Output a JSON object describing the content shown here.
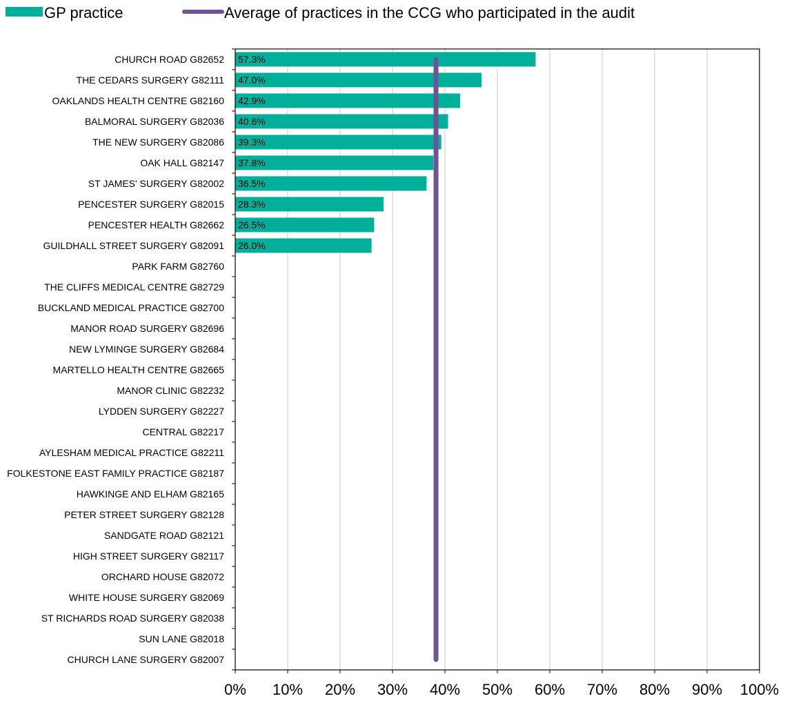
{
  "chart_data": {
    "type": "bar",
    "orientation": "horizontal",
    "title": "",
    "xlabel": "",
    "ylabel": "",
    "xlim": [
      0,
      100
    ],
    "x_ticks": [
      "0%",
      "10%",
      "20%",
      "30%",
      "40%",
      "50%",
      "60%",
      "70%",
      "80%",
      "90%",
      "100%"
    ],
    "grid": "vertical",
    "legend_position": "top",
    "legend": [
      {
        "label": "GP practice",
        "color": "#00b09b",
        "kind": "bar"
      },
      {
        "label": "Average of practices in the CCG who participated in the audit",
        "color": "#6e5495",
        "kind": "line"
      }
    ],
    "average_value": 38.3,
    "categories": [
      "CHURCH ROAD G82652",
      "THE CEDARS SURGERY G82111",
      "OAKLANDS HEALTH CENTRE G82160",
      "BALMORAL SURGERY G82036",
      "THE NEW SURGERY G82086",
      "OAK HALL G82147",
      "ST JAMES' SURGERY G82002",
      "PENCESTER SURGERY G82015",
      "PENCESTER HEALTH G82662",
      "GUILDHALL STREET SURGERY G82091",
      "PARK FARM G82760",
      "THE CLIFFS MEDICAL CENTRE G82729",
      "BUCKLAND MEDICAL PRACTICE G82700",
      "MANOR ROAD SURGERY G82696",
      "NEW LYMINGE SURGERY G82684",
      "MARTELLO HEALTH CENTRE G82665",
      "MANOR CLINIC G82232",
      "LYDDEN SURGERY G82227",
      "CENTRAL G82217",
      "AYLESHAM MEDICAL PRACTICE G82211",
      "FOLKESTONE EAST FAMILY PRACTICE G82187",
      "HAWKINGE AND ELHAM G82165",
      "PETER STREET SURGERY G82128",
      "SANDGATE ROAD G82121",
      "HIGH STREET SURGERY G82117",
      "ORCHARD HOUSE G82072",
      "WHITE HOUSE SURGERY G82069",
      "ST RICHARDS ROAD SURGERY G82038",
      "SUN LANE G82018",
      "CHURCH LANE SURGERY G82007"
    ],
    "values": [
      57.3,
      47.0,
      42.9,
      40.6,
      39.3,
      37.8,
      36.5,
      28.3,
      26.5,
      26.0,
      null,
      null,
      null,
      null,
      null,
      null,
      null,
      null,
      null,
      null,
      null,
      null,
      null,
      null,
      null,
      null,
      null,
      null,
      null,
      null
    ],
    "data_labels": [
      "57.3%",
      "47.0%",
      "42.9%",
      "40.6%",
      "39.3%",
      "37.8%",
      "36.5%",
      "28.3%",
      "26.5%",
      "26.0%",
      "",
      "",
      "",
      "",
      "",
      "",
      "",
      "",
      "",
      "",
      "",
      "",
      "",
      "",
      "",
      "",
      "",
      "",
      "",
      ""
    ]
  }
}
